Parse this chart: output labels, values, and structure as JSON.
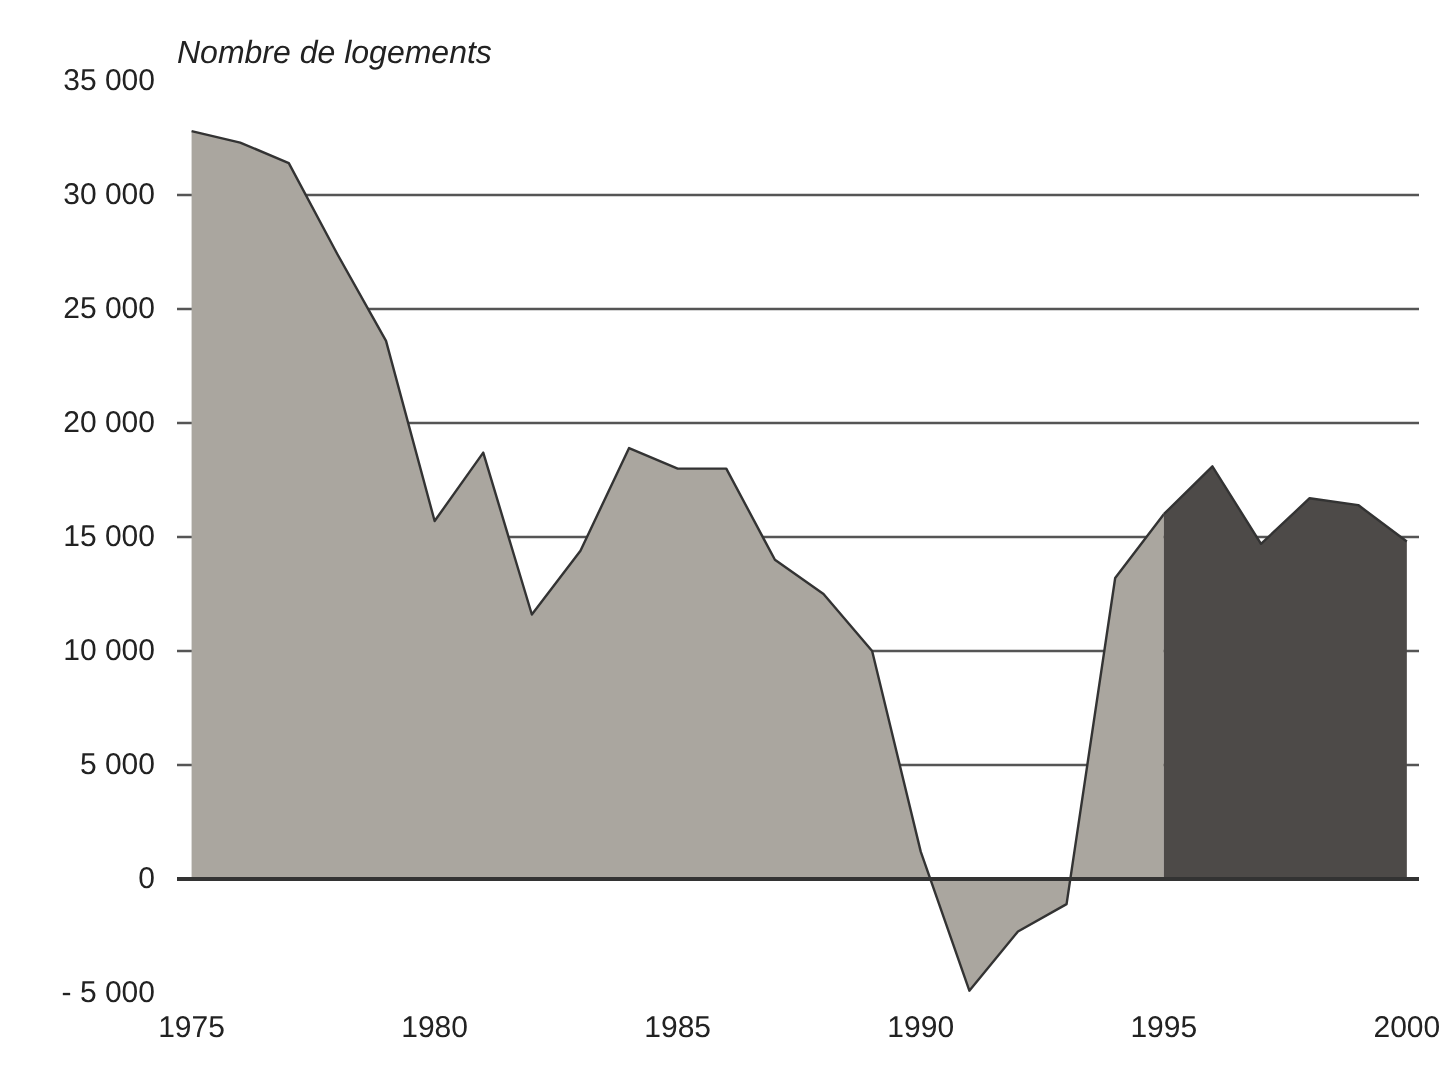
{
  "chart_data": {
    "type": "area",
    "ylabel": "Nombre de logements",
    "xlim": [
      1974.7,
      2000.25
    ],
    "xticks": [
      1975,
      1980,
      1985,
      1990,
      1995,
      2000
    ],
    "ylim": [
      -5000,
      35000
    ],
    "yticks": [
      {
        "value": -5000,
        "label": "- 5 000"
      },
      {
        "value": 0,
        "label": "0"
      },
      {
        "value": 5000,
        "label": "5 000"
      },
      {
        "value": 10000,
        "label": "10 000"
      },
      {
        "value": 15000,
        "label": "15 000"
      },
      {
        "value": 20000,
        "label": "20 000"
      },
      {
        "value": 25000,
        "label": "25 000"
      },
      {
        "value": 30000,
        "label": "30 000"
      },
      {
        "value": 35000,
        "label": "35 000"
      }
    ],
    "grid": "y",
    "ref_lines": [
      {
        "axis": "y",
        "value": 0,
        "color": "#333333"
      }
    ],
    "series": [
      {
        "color": "#aaa69f",
        "x": [
          1975,
          1976,
          1977,
          1978,
          1979,
          1980,
          1981,
          1982,
          1983,
          1984,
          1985,
          1986,
          1987,
          1988,
          1989,
          1990,
          1991,
          1992,
          1993,
          1994,
          1995
        ],
        "values": [
          32800,
          32300,
          31400,
          27400,
          23600,
          15700,
          18700,
          11600,
          14400,
          18900,
          18000,
          18000,
          14000,
          12500,
          10000,
          1200,
          -4900,
          -2300,
          -1100,
          13200,
          16000
        ]
      },
      {
        "color": "#4d4a48",
        "x": [
          1995,
          1996,
          1997,
          1998,
          1999,
          2000
        ],
        "values": [
          16000,
          18100,
          14700,
          16700,
          16400,
          14800
        ]
      }
    ]
  }
}
